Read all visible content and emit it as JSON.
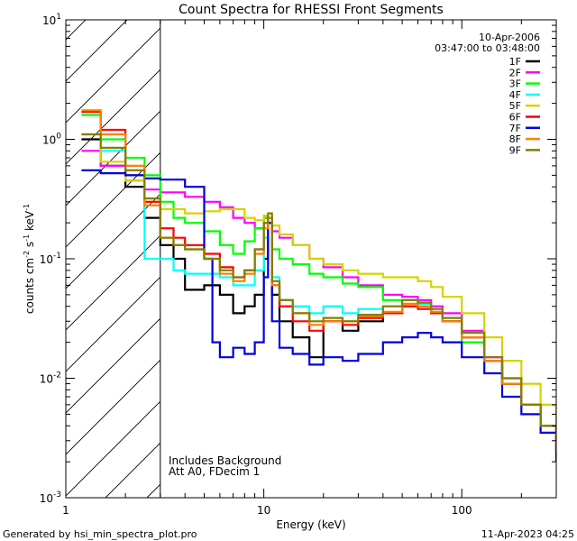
{
  "chart_data": {
    "type": "line",
    "title": "Count Spectra for RHESSI Front Segments",
    "xlabel": "Energy (keV)",
    "ylabel_parts": [
      "counts cm",
      "-2",
      " s",
      "-1",
      " keV",
      "-1"
    ],
    "x_scale": "log",
    "y_scale": "log",
    "xlim": [
      1,
      300
    ],
    "ylim": [
      0.001,
      10
    ],
    "x_ticks": [
      {
        "v": 1,
        "label": "1"
      },
      {
        "v": 10,
        "label": "10"
      },
      {
        "v": 100,
        "label": "100"
      }
    ],
    "y_ticks": [
      {
        "v": 0.001,
        "base": "10",
        "exp": "-3"
      },
      {
        "v": 0.01,
        "base": "10",
        "exp": "-2"
      },
      {
        "v": 0.1,
        "base": "10",
        "exp": "-1"
      },
      {
        "v": 1,
        "base": "10",
        "exp": "0"
      },
      {
        "v": 10,
        "base": "10",
        "exp": "1"
      }
    ],
    "hatched_region": [
      1,
      3
    ],
    "date": "10-Apr-2006",
    "time_range": "03:47:00 to 03:48:00",
    "notes": [
      "Includes Background",
      "Att A0, FDecim 1"
    ],
    "series": [
      {
        "name": "1F",
        "color": "#000000",
        "x": [
          1.2,
          1.5,
          2.0,
          2.5,
          3.0,
          3.5,
          4.0,
          5.0,
          6.0,
          7.0,
          8.0,
          9.0,
          10.0,
          10.5,
          11.0,
          12.0,
          14.0,
          17.0,
          20.0,
          25.0,
          30.0,
          40.0,
          50.0,
          60.0,
          70.0,
          80.0,
          100.0,
          130.0,
          160.0,
          200.0,
          250.0,
          300.0
        ],
        "y": [
          1.0,
          0.6,
          0.4,
          0.22,
          0.13,
          0.1,
          0.055,
          0.06,
          0.05,
          0.035,
          0.04,
          0.05,
          0.1,
          0.2,
          0.05,
          0.03,
          0.022,
          0.015,
          0.03,
          0.025,
          0.03,
          0.035,
          0.04,
          0.04,
          0.035,
          0.03,
          0.022,
          0.014,
          0.009,
          0.006,
          0.004,
          0.0025
        ]
      },
      {
        "name": "2F",
        "color": "#ff00ff",
        "x": [
          1.2,
          1.5,
          2.0,
          2.5,
          3.0,
          4.0,
          5.0,
          6.0,
          7.0,
          8.0,
          9.0,
          10.0,
          10.5,
          11.0,
          12.0,
          14.0,
          17.0,
          20.0,
          25.0,
          30.0,
          40.0,
          50.0,
          60.0,
          70.0,
          80.0,
          100.0,
          130.0,
          160.0,
          200.0,
          250.0,
          300.0
        ],
        "y": [
          0.8,
          0.6,
          0.45,
          0.38,
          0.36,
          0.33,
          0.3,
          0.27,
          0.22,
          0.2,
          0.18,
          0.22,
          0.2,
          0.17,
          0.15,
          0.13,
          0.1,
          0.085,
          0.07,
          0.06,
          0.05,
          0.048,
          0.045,
          0.04,
          0.035,
          0.025,
          0.015,
          0.01,
          0.006,
          0.004,
          0.0025
        ]
      },
      {
        "name": "3F",
        "color": "#00ff00",
        "x": [
          1.2,
          1.5,
          2.0,
          2.5,
          3.0,
          3.5,
          4.0,
          5.0,
          6.0,
          7.0,
          8.0,
          9.0,
          10.0,
          10.5,
          11.0,
          12.0,
          14.0,
          17.0,
          20.0,
          25.0,
          30.0,
          40.0,
          50.0,
          60.0,
          70.0,
          80.0,
          100.0,
          130.0,
          160.0,
          200.0,
          250.0,
          300.0
        ],
        "y": [
          1.6,
          1.0,
          0.7,
          0.5,
          0.3,
          0.22,
          0.2,
          0.17,
          0.13,
          0.11,
          0.14,
          0.18,
          0.22,
          0.2,
          0.12,
          0.1,
          0.09,
          0.075,
          0.07,
          0.062,
          0.058,
          0.045,
          0.045,
          0.04,
          0.035,
          0.03,
          0.02,
          0.014,
          0.009,
          0.006,
          0.004,
          0.0025
        ]
      },
      {
        "name": "4F",
        "color": "#00ffff",
        "x": [
          1.2,
          1.5,
          2.0,
          2.5,
          3.0,
          3.5,
          4.0,
          5.0,
          6.0,
          7.0,
          8.0,
          9.0,
          10.0,
          10.5,
          11.0,
          12.0,
          14.0,
          17.0,
          20.0,
          25.0,
          30.0,
          40.0,
          50.0,
          60.0,
          70.0,
          80.0,
          100.0,
          130.0,
          160.0,
          200.0,
          250.0,
          300.0
        ],
        "y": [
          1.7,
          0.8,
          0.5,
          0.1,
          0.1,
          0.08,
          0.075,
          0.075,
          0.07,
          0.06,
          0.06,
          0.08,
          0.15,
          0.22,
          0.07,
          0.045,
          0.04,
          0.035,
          0.04,
          0.035,
          0.038,
          0.04,
          0.045,
          0.042,
          0.038,
          0.032,
          0.022,
          0.014,
          0.009,
          0.006,
          0.004,
          0.0025
        ]
      },
      {
        "name": "5F",
        "color": "#d4d400",
        "x": [
          1.2,
          1.5,
          2.0,
          2.5,
          3.0,
          4.0,
          5.0,
          6.0,
          7.0,
          8.0,
          9.0,
          10.0,
          10.5,
          11.0,
          12.0,
          14.0,
          17.0,
          20.0,
          25.0,
          30.0,
          40.0,
          50.0,
          60.0,
          70.0,
          80.0,
          100.0,
          130.0,
          160.0,
          200.0,
          250.0,
          300.0
        ],
        "y": [
          1.1,
          0.65,
          0.45,
          0.3,
          0.26,
          0.24,
          0.25,
          0.26,
          0.26,
          0.22,
          0.21,
          0.23,
          0.22,
          0.19,
          0.16,
          0.13,
          0.1,
          0.09,
          0.08,
          0.075,
          0.07,
          0.07,
          0.065,
          0.058,
          0.048,
          0.035,
          0.022,
          0.014,
          0.009,
          0.006,
          0.0035
        ]
      },
      {
        "name": "6F",
        "color": "#ff0000",
        "x": [
          1.2,
          1.5,
          2.0,
          2.5,
          3.0,
          3.5,
          4.0,
          5.0,
          6.0,
          7.0,
          8.0,
          9.0,
          10.0,
          10.5,
          11.0,
          12.0,
          14.0,
          17.0,
          20.0,
          25.0,
          30.0,
          40.0,
          50.0,
          60.0,
          70.0,
          80.0,
          100.0,
          130.0,
          160.0,
          200.0,
          250.0,
          300.0
        ],
        "y": [
          1.7,
          1.2,
          0.5,
          0.3,
          0.18,
          0.15,
          0.13,
          0.11,
          0.085,
          0.07,
          0.08,
          0.12,
          0.2,
          0.22,
          0.06,
          0.04,
          0.03,
          0.025,
          0.03,
          0.028,
          0.032,
          0.035,
          0.04,
          0.038,
          0.035,
          0.03,
          0.022,
          0.014,
          0.009,
          0.006,
          0.004,
          0.0025
        ]
      },
      {
        "name": "7F",
        "color": "#0000e0",
        "x": [
          1.2,
          1.5,
          2.0,
          2.5,
          3.0,
          4.0,
          5.0,
          5.5,
          6.0,
          7.0,
          8.0,
          9.0,
          10.0,
          10.5,
          11.0,
          12.0,
          14.0,
          17.0,
          20.0,
          25.0,
          30.0,
          40.0,
          50.0,
          60.0,
          70.0,
          80.0,
          100.0,
          130.0,
          160.0,
          200.0,
          250.0,
          300.0
        ],
        "y": [
          0.55,
          0.52,
          0.5,
          0.47,
          0.46,
          0.4,
          0.1,
          0.02,
          0.015,
          0.018,
          0.016,
          0.02,
          0.07,
          0.2,
          0.03,
          0.018,
          0.016,
          0.013,
          0.015,
          0.014,
          0.016,
          0.02,
          0.022,
          0.024,
          0.022,
          0.02,
          0.015,
          0.011,
          0.007,
          0.005,
          0.0035,
          0.002
        ]
      },
      {
        "name": "8F",
        "color": "#ff7f00",
        "x": [
          1.2,
          1.5,
          2.0,
          2.5,
          3.0,
          3.5,
          4.0,
          5.0,
          6.0,
          7.0,
          8.0,
          9.0,
          10.0,
          10.5,
          11.0,
          12.0,
          14.0,
          17.0,
          20.0,
          25.0,
          30.0,
          40.0,
          50.0,
          60.0,
          70.0,
          80.0,
          100.0,
          130.0,
          160.0,
          200.0,
          250.0,
          300.0
        ],
        "y": [
          1.75,
          1.1,
          0.6,
          0.28,
          0.15,
          0.13,
          0.12,
          0.1,
          0.075,
          0.065,
          0.075,
          0.11,
          0.18,
          0.22,
          0.06,
          0.045,
          0.035,
          0.028,
          0.03,
          0.03,
          0.033,
          0.036,
          0.042,
          0.04,
          0.036,
          0.03,
          0.022,
          0.014,
          0.009,
          0.006,
          0.004,
          0.0025
        ]
      },
      {
        "name": "9F",
        "color": "#808000",
        "x": [
          1.2,
          1.5,
          2.0,
          2.5,
          3.0,
          3.5,
          4.0,
          5.0,
          6.0,
          7.0,
          8.0,
          9.0,
          10.0,
          10.5,
          11.0,
          12.0,
          14.0,
          17.0,
          20.0,
          25.0,
          30.0,
          40.0,
          50.0,
          60.0,
          70.0,
          80.0,
          100.0,
          130.0,
          160.0,
          200.0,
          250.0,
          300.0
        ],
        "y": [
          1.1,
          0.85,
          0.55,
          0.32,
          0.15,
          0.13,
          0.12,
          0.1,
          0.08,
          0.07,
          0.08,
          0.12,
          0.2,
          0.24,
          0.065,
          0.045,
          0.035,
          0.03,
          0.032,
          0.03,
          0.034,
          0.04,
          0.045,
          0.043,
          0.038,
          0.032,
          0.024,
          0.015,
          0.01,
          0.006,
          0.004,
          0.0025
        ]
      }
    ]
  },
  "footer": {
    "generated_by": "Generated by hsi_min_spectra_plot.pro",
    "timestamp": "11-Apr-2023 04:25"
  }
}
